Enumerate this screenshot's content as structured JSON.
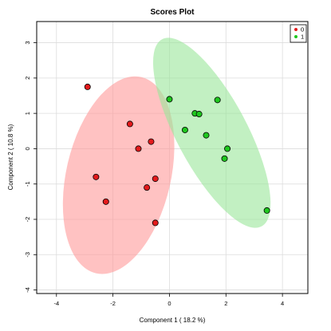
{
  "chart_data": {
    "type": "scatter",
    "title": "Scores Plot",
    "xlabel": "Component 1 ( 18.2 %)",
    "ylabel": "Component 2 ( 10.8 %)",
    "xlim": [
      -4.7,
      4.9
    ],
    "ylim": [
      -4.1,
      3.6
    ],
    "xticks": [
      -4,
      -2,
      0,
      2,
      4
    ],
    "yticks": [
      -4,
      -3,
      -2,
      -1,
      0,
      1,
      2,
      3
    ],
    "grid": true,
    "legend_position": "top-right",
    "series": [
      {
        "name": "0",
        "color": "#e31a1c",
        "ellipse_color": "#ff9999",
        "points": [
          {
            "x": -2.9,
            "y": 1.75
          },
          {
            "x": -1.4,
            "y": 0.7
          },
          {
            "x": -1.1,
            "y": 0.0
          },
          {
            "x": -0.65,
            "y": 0.2
          },
          {
            "x": -2.6,
            "y": -0.8
          },
          {
            "x": -0.5,
            "y": -0.85
          },
          {
            "x": -0.8,
            "y": -1.1
          },
          {
            "x": -2.25,
            "y": -1.5
          },
          {
            "x": -0.5,
            "y": -2.1
          }
        ],
        "ellipse": {
          "cx": -1.8,
          "cy": -0.75,
          "rx": 1.85,
          "ry": 2.85,
          "angle_deg": 13
        }
      },
      {
        "name": "1",
        "color": "#1ec71e",
        "ellipse_color": "#99e699",
        "points": [
          {
            "x": 0.0,
            "y": 1.4
          },
          {
            "x": 1.7,
            "y": 1.38
          },
          {
            "x": 0.9,
            "y": 1.0
          },
          {
            "x": 1.05,
            "y": 0.98
          },
          {
            "x": 0.55,
            "y": 0.53
          },
          {
            "x": 1.3,
            "y": 0.38
          },
          {
            "x": 2.05,
            "y": 0.0
          },
          {
            "x": 1.95,
            "y": -0.28
          },
          {
            "x": 3.45,
            "y": -1.75
          }
        ],
        "ellipse": {
          "cx": 1.5,
          "cy": 0.45,
          "rx": 1.25,
          "ry": 3.0,
          "angle_deg": -28
        }
      }
    ]
  }
}
